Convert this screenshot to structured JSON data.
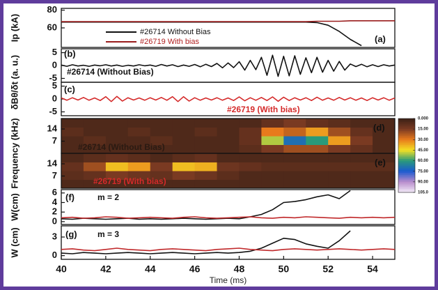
{
  "chart_data": [
    {
      "type": "line",
      "ylabel": "Ip (kA)",
      "tag": "(a)",
      "xlim": [
        40,
        55
      ],
      "ylim": [
        38,
        82
      ],
      "yticks": [
        60,
        80
      ],
      "legend": true,
      "x": [
        40,
        40.5,
        41,
        41.5,
        42,
        42.5,
        43,
        43.5,
        44,
        44.5,
        45,
        45.5,
        46,
        46.5,
        47,
        47.5,
        48,
        48.5,
        49,
        49.5,
        50,
        50.5,
        51,
        51.5,
        52,
        52.5,
        53,
        53.5,
        54,
        54.5,
        55
      ],
      "series": [
        {
          "name": "#26714 Without Bias",
          "color": "#111111",
          "values": [
            66.5,
            66.5,
            66.5,
            66.5,
            66.5,
            66.5,
            66.5,
            66.5,
            66.5,
            66.5,
            66.5,
            66.5,
            66.5,
            66.5,
            66.5,
            66.5,
            66.5,
            66.5,
            66.5,
            66.5,
            66.5,
            66.5,
            66.5,
            66,
            63,
            56,
            47,
            40,
            null,
            null,
            null
          ]
        },
        {
          "name": "#26719 With bias",
          "color": "#9a1c1c",
          "values": [
            67,
            67,
            67,
            67,
            67,
            67,
            67,
            67,
            67,
            67,
            67,
            67,
            67,
            67,
            67,
            67,
            67,
            67,
            67,
            67,
            67,
            67,
            67,
            67.5,
            67.5,
            67.5,
            68,
            68,
            68,
            68,
            68
          ]
        }
      ]
    },
    {
      "type": "line",
      "ylabel": "δBθ/δt (a. u.)",
      "tag": "(b)",
      "xlim": [
        40,
        55
      ],
      "ylim": [
        -6.5,
        6.5
      ],
      "yticks": [
        5,
        0,
        -5
      ],
      "annotations": [
        {
          "text": "#26714 (Without Bias)",
          "color": "#111111"
        }
      ],
      "x": [
        40,
        40.25,
        40.5,
        40.75,
        41,
        41.25,
        41.5,
        41.75,
        42,
        42.25,
        42.5,
        42.75,
        43,
        43.25,
        43.5,
        43.75,
        44,
        44.25,
        44.5,
        44.75,
        45,
        45.25,
        45.5,
        45.75,
        46,
        46.25,
        46.5,
        46.75,
        47,
        47.25,
        47.5,
        47.75,
        48,
        48.25,
        48.5,
        48.75,
        49,
        49.25,
        49.5,
        49.75,
        50,
        50.25,
        50.5,
        50.75,
        51,
        51.25,
        51.5,
        51.75,
        52,
        52.25,
        52.5,
        52.75,
        53,
        53.25,
        53.5,
        53.75,
        54,
        54.25,
        54.5,
        54.75,
        55
      ],
      "series": [
        {
          "color": "#111111",
          "values": [
            0.2,
            -0.3,
            0.3,
            -0.2,
            0.1,
            -0.3,
            0.2,
            -0.1,
            0.3,
            -0.2,
            0.2,
            -0.3,
            0.1,
            -0.2,
            0.3,
            -0.1,
            0.2,
            -0.3,
            0.4,
            -0.2,
            0.3,
            -0.4,
            0.2,
            -0.3,
            0.4,
            -0.5,
            0.5,
            -0.4,
            0.8,
            -0.9,
            1,
            -0.8,
            1.5,
            -1.8,
            2,
            -1.6,
            3.2,
            -3.8,
            4,
            -4.2,
            3.6,
            -4,
            3.8,
            -3.4,
            3,
            -2.8,
            3.2,
            -2.6,
            2,
            -2.2,
            1.6,
            -1.8,
            0.6,
            -0.4,
            0.5,
            -0.5,
            0.3,
            -0.4,
            0.3,
            -0.2,
            0.2
          ]
        }
      ]
    },
    {
      "type": "line",
      "tag": "(c)",
      "xlim": [
        40,
        55
      ],
      "ylim": [
        -6.5,
        6.5
      ],
      "yticks": [
        5,
        0,
        -5
      ],
      "annotations": [
        {
          "text": "#26719 (With bias)",
          "color": "#d42a2a"
        }
      ],
      "x": [
        40,
        40.25,
        40.5,
        40.75,
        41,
        41.25,
        41.5,
        41.75,
        42,
        42.25,
        42.5,
        42.75,
        43,
        43.25,
        43.5,
        43.75,
        44,
        44.25,
        44.5,
        44.75,
        45,
        45.25,
        45.5,
        45.75,
        46,
        46.25,
        46.5,
        46.75,
        47,
        47.25,
        47.5,
        47.75,
        48,
        48.25,
        48.5,
        48.75,
        49,
        49.25,
        49.5,
        49.75,
        50,
        50.25,
        50.5,
        50.75,
        51,
        51.25,
        51.5,
        51.75,
        52,
        52.25,
        52.5,
        52.75,
        53,
        53.25,
        53.5,
        53.75,
        54,
        54.25,
        54.5,
        54.75,
        55
      ],
      "series": [
        {
          "color": "#d42a2a",
          "values": [
            0.4,
            -0.5,
            0.5,
            -0.4,
            0.6,
            -0.5,
            0.4,
            -0.6,
            0.9,
            -1,
            1,
            -0.8,
            0.5,
            -0.4,
            0.4,
            -0.5,
            0.5,
            -0.4,
            0.6,
            -0.5,
            0.9,
            -1,
            0.9,
            -0.8,
            0.5,
            -0.5,
            0.4,
            -0.4,
            0.5,
            -0.5,
            0.4,
            -0.6,
            0.8,
            -0.7,
            0.5,
            -0.5,
            0.6,
            -0.6,
            0.8,
            -0.9,
            0.7,
            -0.6,
            0.5,
            -0.4,
            0.5,
            -0.6,
            0.7,
            -0.5,
            0.4,
            -0.5,
            0.6,
            -0.4,
            0.5,
            -0.5,
            0.4,
            -0.6,
            0.5,
            -0.4,
            0.5,
            -0.5,
            0.4
          ]
        }
      ]
    },
    {
      "type": "heatmap",
      "ylabel": "Frequency (kHz)",
      "tag": "(d)",
      "xlim": [
        40,
        55
      ],
      "ylim": [
        0,
        20
      ],
      "yticks": [
        14,
        7
      ],
      "annotations": [
        {
          "text": "#26714 (Without Bias)",
          "color": "#2a1a12"
        }
      ],
      "x": [
        40.5,
        41.5,
        42.5,
        43.5,
        44.5,
        45.5,
        46.5,
        47.5,
        48.5,
        49.5,
        50.5,
        51.5,
        52.5,
        53.5,
        54.5
      ],
      "y": [
        2.5,
        7.5,
        12.5,
        17.5
      ],
      "z": [
        [
          5,
          5,
          5,
          5,
          5,
          5,
          5,
          5,
          8,
          15,
          20,
          20,
          15,
          10,
          5
        ],
        [
          5,
          8,
          5,
          5,
          8,
          5,
          5,
          5,
          10,
          50,
          70,
          60,
          35,
          15,
          5
        ],
        [
          8,
          5,
          5,
          8,
          5,
          5,
          8,
          5,
          10,
          30,
          25,
          35,
          20,
          10,
          5
        ],
        [
          5,
          5,
          5,
          5,
          5,
          5,
          5,
          5,
          5,
          10,
          15,
          10,
          8,
          5,
          5
        ]
      ],
      "zlim": [
        0,
        105
      ],
      "zticks": [
        {
          "value": 0,
          "label": "0.000"
        },
        {
          "value": 15,
          "label": "15.00"
        },
        {
          "value": 30,
          "label": "30.00"
        },
        {
          "value": 45,
          "label": "45.00"
        },
        {
          "value": 60,
          "label": "60.00"
        },
        {
          "value": 75,
          "label": "75.00"
        },
        {
          "value": 90,
          "label": "90.00"
        },
        {
          "value": 105,
          "label": "105.0"
        }
      ],
      "colorscale": [
        "#3a2016",
        "#7a3a22",
        "#e87a1c",
        "#f4e024",
        "#2a9a7a",
        "#1a5ad0",
        "#b88ccc",
        "#f2eaf8"
      ]
    },
    {
      "type": "heatmap",
      "tag": "(e)",
      "xlim": [
        40,
        55
      ],
      "ylim": [
        0,
        20
      ],
      "yticks": [
        14,
        7
      ],
      "annotations": [
        {
          "text": "#26719 (With bias)",
          "color": "#d42a2a"
        }
      ],
      "x": [
        40.5,
        41.5,
        42.5,
        43.5,
        44.5,
        45.5,
        46.5,
        47.5,
        48.5,
        49.5,
        50.5,
        51.5,
        52.5,
        53.5,
        54.5
      ],
      "y": [
        2.5,
        7.5,
        12.5,
        17.5
      ],
      "z": [
        [
          5,
          5,
          5,
          5,
          5,
          5,
          5,
          5,
          5,
          5,
          5,
          5,
          5,
          5,
          5
        ],
        [
          8,
          10,
          15,
          12,
          10,
          15,
          12,
          8,
          5,
          5,
          5,
          5,
          5,
          5,
          5
        ],
        [
          10,
          20,
          40,
          35,
          15,
          40,
          38,
          12,
          10,
          8,
          8,
          8,
          8,
          8,
          8
        ],
        [
          5,
          8,
          10,
          8,
          5,
          8,
          10,
          5,
          5,
          5,
          5,
          5,
          5,
          5,
          5
        ]
      ],
      "zlim": [
        0,
        105
      ],
      "colorscale": [
        "#3a2016",
        "#7a3a22",
        "#e87a1c",
        "#f4e024",
        "#2a9a7a",
        "#1a5ad0",
        "#b88ccc",
        "#f2eaf8"
      ]
    },
    {
      "type": "line",
      "ylabel": "W(cm)",
      "tag": "(f)",
      "xlim": [
        40,
        55
      ],
      "ylim": [
        -0.6,
        6.7
      ],
      "yticks": [
        6,
        4,
        2,
        0
      ],
      "annotations": [
        {
          "text": "m = 2",
          "color": "#111111"
        }
      ],
      "x": [
        40,
        40.5,
        41,
        41.5,
        42,
        42.5,
        43,
        43.5,
        44,
        44.5,
        45,
        45.5,
        46,
        46.5,
        47,
        47.5,
        48,
        48.5,
        49,
        49.5,
        50,
        50.5,
        51,
        51.5,
        52,
        52.5,
        53,
        53.5,
        54,
        54.5,
        55
      ],
      "series": [
        {
          "color": "#111111",
          "values": [
            0.6,
            0.5,
            0.7,
            0.6,
            0.5,
            0.6,
            0.7,
            0.5,
            0.6,
            0.5,
            0.6,
            0.7,
            0.6,
            0.5,
            0.6,
            0.7,
            0.6,
            1,
            1.5,
            2.5,
            4,
            4.2,
            4.6,
            5.2,
            5.6,
            4.8,
            6.5,
            null,
            null,
            null,
            null
          ]
        },
        {
          "color": "#c0282a",
          "values": [
            0.8,
            0.9,
            0.7,
            0.8,
            1,
            0.9,
            0.7,
            0.8,
            0.9,
            0.8,
            0.7,
            0.9,
            1,
            0.8,
            0.7,
            0.8,
            0.9,
            1,
            0.8,
            0.7,
            0.9,
            0.8,
            1,
            0.9,
            0.8,
            0.7,
            0.9,
            0.8,
            0.9,
            0.8,
            0.9
          ]
        }
      ]
    },
    {
      "type": "line",
      "ylabel": "W (cm)",
      "tag": "(g)",
      "xlim": [
        40,
        55
      ],
      "ylim": [
        -0.6,
        4.8
      ],
      "yticks": [
        3,
        0
      ],
      "xticks": [
        40,
        42,
        44,
        46,
        48,
        50,
        52,
        54
      ],
      "xlabel": "Time (ms)",
      "annotations": [
        {
          "text": "m = 3",
          "color": "#111111"
        }
      ],
      "x": [
        40,
        40.5,
        41,
        41.5,
        42,
        42.5,
        43,
        43.5,
        44,
        44.5,
        45,
        45.5,
        46,
        46.5,
        47,
        47.5,
        48,
        48.5,
        49,
        49.5,
        50,
        50.5,
        51,
        51.5,
        52,
        52.5,
        53,
        53.5,
        54,
        54.5,
        55
      ],
      "series": [
        {
          "color": "#111111",
          "values": [
            0.4,
            0.3,
            0.5,
            0.4,
            0.3,
            0.4,
            0.5,
            0.4,
            0.3,
            0.4,
            0.5,
            0.4,
            0.3,
            0.4,
            0.5,
            0.4,
            0.5,
            0.7,
            1.2,
            2,
            2.8,
            2.6,
            1.9,
            1.5,
            1.2,
            2.4,
            4,
            null,
            null,
            null,
            null
          ]
        },
        {
          "color": "#c0282a",
          "values": [
            1,
            1.1,
            0.9,
            0.8,
            1,
            1.2,
            1,
            0.9,
            0.8,
            1,
            1.1,
            1,
            0.9,
            0.8,
            1,
            1.1,
            1.2,
            1,
            0.9,
            0.8,
            1,
            1.1,
            1,
            0.9,
            1,
            1.1,
            1,
            0.9,
            1,
            1.1,
            1
          ]
        }
      ]
    }
  ]
}
